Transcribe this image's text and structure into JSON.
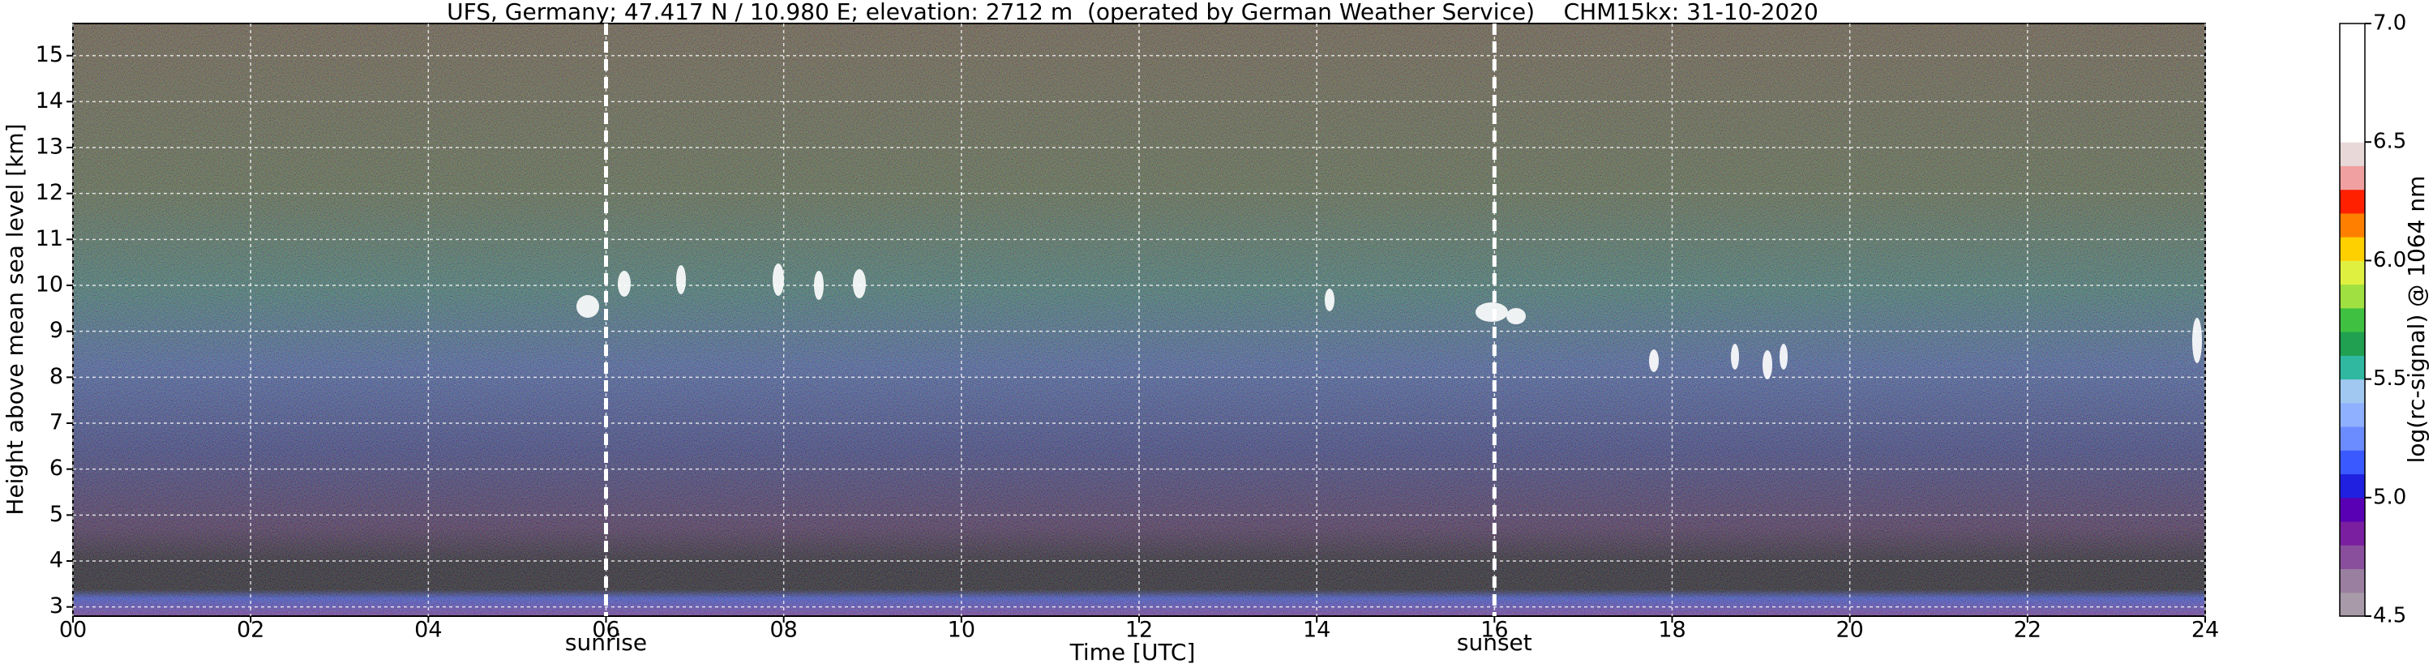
{
  "chart_data": {
    "type": "heatmap",
    "title": "UFS, Germany; 47.417 N / 10.980 E; elevation: 2712 m  (operated by German Weather Service)    CHM15kx: 31-10-2020",
    "x_label": "Time [UTC]",
    "y_label": "Height above mean sea level [km]",
    "xlim": [
      0,
      24
    ],
    "xticks": [
      {
        "value": 0,
        "label": "00"
      },
      {
        "value": 2,
        "label": "02"
      },
      {
        "value": 4,
        "label": "04"
      },
      {
        "value": 6,
        "label": "06"
      },
      {
        "value": 8,
        "label": "08"
      },
      10,
      12,
      14,
      16,
      18,
      20,
      22,
      24
    ],
    "ylim": [
      2.8,
      15.7
    ],
    "yticks": [
      3,
      4,
      5,
      6,
      7,
      8,
      9,
      10,
      11,
      12,
      13,
      14,
      15
    ],
    "grid": true,
    "annotations": [
      {
        "text": "sunrise",
        "x": 6
      },
      {
        "text": "sunset",
        "x": 16
      }
    ],
    "colorbar": {
      "label": "log(rc-signal) @ 1064 nm",
      "lim": [
        4.5,
        7.0
      ],
      "ticks": [
        4.5,
        {
          "value": 5,
          "label": "5.0"
        },
        5.5,
        {
          "value": 6,
          "label": "6.0"
        },
        6.5,
        {
          "value": 7,
          "label": "7.0"
        }
      ],
      "colors": [
        "#a89aa8",
        "#9a7fa0",
        "#8a4f9c",
        "#7a1fa0",
        "#5a00b4",
        "#2020e0",
        "#3a5aff",
        "#6a8cff",
        "#8fb0ff",
        "#a0c8f0",
        "#30b8a0",
        "#20a050",
        "#40c040",
        "#a0e040",
        "#e0f040",
        "#ffd000",
        "#ff8000",
        "#ff2000",
        "#f0a0a0",
        "#e8d8d8",
        "#ffffff",
        "#ffffff",
        "#ffffff",
        "#ffffff",
        "#ffffff"
      ]
    }
  }
}
